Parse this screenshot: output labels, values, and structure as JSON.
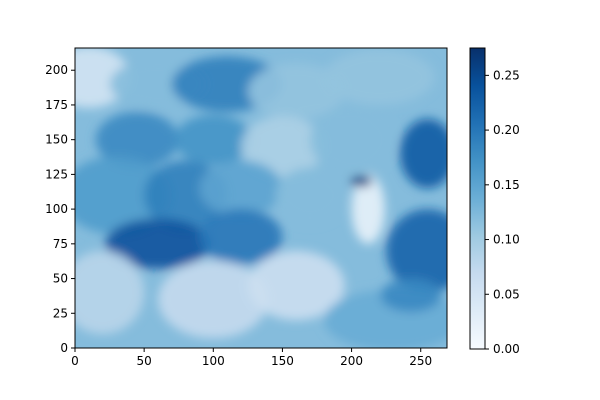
{
  "chart_data": {
    "type": "heatmap",
    "title": "",
    "xlabel": "",
    "ylabel": "",
    "xlim": [
      0,
      269
    ],
    "ylim": [
      0,
      216
    ],
    "x_ticks": [
      0,
      50,
      100,
      150,
      200,
      250
    ],
    "y_ticks": [
      0,
      25,
      50,
      75,
      100,
      125,
      150,
      175,
      200
    ],
    "colorbar": {
      "colormap": "Blues",
      "vmin": 0.0,
      "vmax": 0.275,
      "ticks": [
        "0.00",
        "0.05",
        "0.10",
        "0.15",
        "0.20",
        "0.25"
      ],
      "colors": [
        "#f7fbff",
        "#deebf7",
        "#c6dbef",
        "#9ecae1",
        "#6baed6",
        "#4292c6",
        "#2171b5",
        "#08519c",
        "#08306b"
      ]
    },
    "regions": [
      {
        "x": 10,
        "y": 195,
        "rx": 30,
        "ry": 22,
        "value": 0.05
      },
      {
        "x": 60,
        "y": 190,
        "rx": 35,
        "ry": 18,
        "value": 0.12
      },
      {
        "x": 110,
        "y": 190,
        "rx": 40,
        "ry": 20,
        "value": 0.19
      },
      {
        "x": 160,
        "y": 185,
        "rx": 35,
        "ry": 20,
        "value": 0.11
      },
      {
        "x": 220,
        "y": 195,
        "rx": 40,
        "ry": 20,
        "value": 0.11
      },
      {
        "x": 45,
        "y": 150,
        "rx": 30,
        "ry": 20,
        "value": 0.18
      },
      {
        "x": 100,
        "y": 150,
        "rx": 28,
        "ry": 18,
        "value": 0.17
      },
      {
        "x": 150,
        "y": 145,
        "rx": 30,
        "ry": 22,
        "value": 0.09
      },
      {
        "x": 200,
        "y": 150,
        "rx": 30,
        "ry": 25,
        "value": 0.12
      },
      {
        "x": 30,
        "y": 110,
        "rx": 40,
        "ry": 28,
        "value": 0.16
      },
      {
        "x": 80,
        "y": 110,
        "rx": 30,
        "ry": 25,
        "value": 0.19
      },
      {
        "x": 120,
        "y": 115,
        "rx": 30,
        "ry": 20,
        "value": 0.15
      },
      {
        "x": 170,
        "y": 110,
        "rx": 25,
        "ry": 20,
        "value": 0.12
      },
      {
        "x": 60,
        "y": 75,
        "rx": 38,
        "ry": 18,
        "value": 0.24
      },
      {
        "x": 120,
        "y": 80,
        "rx": 30,
        "ry": 20,
        "value": 0.2
      },
      {
        "x": 20,
        "y": 40,
        "rx": 30,
        "ry": 30,
        "value": 0.08
      },
      {
        "x": 100,
        "y": 35,
        "rx": 40,
        "ry": 28,
        "value": 0.07
      },
      {
        "x": 160,
        "y": 45,
        "rx": 35,
        "ry": 25,
        "value": 0.06
      },
      {
        "x": 230,
        "y": 20,
        "rx": 50,
        "ry": 22,
        "value": 0.14
      },
      {
        "x": 255,
        "y": 70,
        "rx": 30,
        "ry": 30,
        "value": 0.22
      },
      {
        "x": 255,
        "y": 140,
        "rx": 20,
        "ry": 25,
        "value": 0.23
      },
      {
        "x": 212,
        "y": 100,
        "rx": 12,
        "ry": 25,
        "value": 0.02
      },
      {
        "x": 207,
        "y": 120,
        "rx": 8,
        "ry": 4,
        "value": 0.26
      },
      {
        "x": 243,
        "y": 38,
        "rx": 22,
        "ry": 12,
        "value": 0.18
      }
    ]
  }
}
